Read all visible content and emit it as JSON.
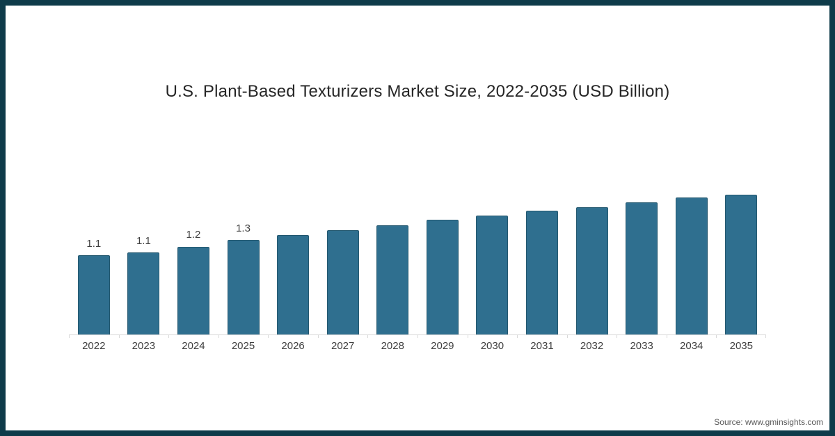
{
  "page": {
    "source": "Source: www.gminsights.com"
  },
  "colors": {
    "frame": "#0e3b4a",
    "bar": "#2f6f8f",
    "bar_border": "#24586f",
    "axis": "#d9d9d9",
    "text": "#3f3f3f",
    "title": "#262626",
    "source": "#595959"
  },
  "chart_data": {
    "type": "bar",
    "title": "U.S. Plant-Based Texturizers Market Size, 2022-2035 (USD Billion)",
    "categories": [
      "2022",
      "2023",
      "2024",
      "2025",
      "2026",
      "2027",
      "2028",
      "2029",
      "2030",
      "2031",
      "2032",
      "2033",
      "2034",
      "2035"
    ],
    "values": [
      1.1,
      1.14,
      1.22,
      1.31,
      1.38,
      1.45,
      1.52,
      1.59,
      1.65,
      1.72,
      1.77,
      1.84,
      1.9,
      1.94
    ],
    "data_labels": [
      "1.1",
      "1.1",
      "1.2",
      "1.3",
      "",
      "",
      "",
      "",
      "",
      "",
      "",
      "",
      "",
      ""
    ],
    "xlabel": "",
    "ylabel": "",
    "units": "USD Billion",
    "ylim": [
      0,
      2.1
    ],
    "grid": false,
    "legend": false
  }
}
